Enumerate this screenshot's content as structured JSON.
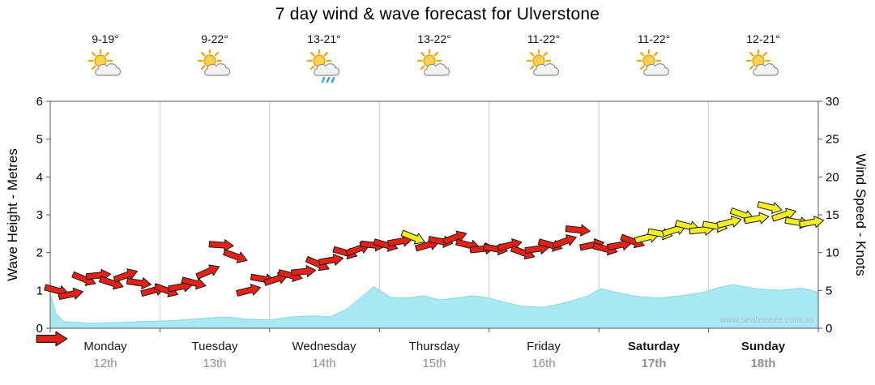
{
  "title": "7 day wind & wave forecast for Ulverstone",
  "watermark": "www.seabreeze.com.au",
  "days": [
    {
      "name": "Monday",
      "date": "12th",
      "temp": "9-19°",
      "icon": "partly-cloudy",
      "weekend": false
    },
    {
      "name": "Tuesday",
      "date": "13th",
      "temp": "9-22°",
      "icon": "partly-cloudy",
      "weekend": false
    },
    {
      "name": "Wednesday",
      "date": "14th",
      "temp": "13-21°",
      "icon": "partly-cloudy-rain",
      "weekend": false
    },
    {
      "name": "Thursday",
      "date": "15th",
      "temp": "13-22°",
      "icon": "partly-cloudy",
      "weekend": false
    },
    {
      "name": "Friday",
      "date": "16th",
      "temp": "11-22°",
      "icon": "partly-cloudy",
      "weekend": false
    },
    {
      "name": "Saturday",
      "date": "17th",
      "temp": "11-22°",
      "icon": "partly-cloudy",
      "weekend": true
    },
    {
      "name": "Sunday",
      "date": "18th",
      "temp": "12-21°",
      "icon": "partly-cloudy",
      "weekend": true
    }
  ],
  "chart_data": {
    "type": "area",
    "x_axis": {
      "unit": "days",
      "span": 7,
      "labels": [
        "Monday 12th",
        "Tuesday 13th",
        "Wednesday 14th",
        "Thursday 15th",
        "Friday 16th",
        "Saturday 17th",
        "Sunday 18th"
      ]
    },
    "grid": {
      "vertical_day_separators": true,
      "horizontal": false
    },
    "wave_height": {
      "label": "Wave Height - Metres",
      "ylim": [
        0,
        6
      ],
      "ticks": [
        0,
        1,
        2,
        3,
        4,
        5,
        6
      ],
      "color": "#a9e9f4",
      "edge_color": "#86d8e8",
      "points": [
        [
          0,
          0.92
        ],
        [
          0.05,
          0.4
        ],
        [
          0.12,
          0.18
        ],
        [
          0.35,
          0.13
        ],
        [
          0.6,
          0.15
        ],
        [
          0.85,
          0.18
        ],
        [
          1.1,
          0.2
        ],
        [
          1.35,
          0.25
        ],
        [
          1.6,
          0.3
        ],
        [
          1.8,
          0.24
        ],
        [
          2.0,
          0.22
        ],
        [
          2.2,
          0.3
        ],
        [
          2.4,
          0.33
        ],
        [
          2.55,
          0.3
        ],
        [
          2.7,
          0.5
        ],
        [
          2.85,
          0.85
        ],
        [
          2.95,
          1.1
        ],
        [
          3.1,
          0.82
        ],
        [
          3.25,
          0.8
        ],
        [
          3.4,
          0.86
        ],
        [
          3.55,
          0.75
        ],
        [
          3.7,
          0.8
        ],
        [
          3.85,
          0.86
        ],
        [
          4.0,
          0.8
        ],
        [
          4.15,
          0.68
        ],
        [
          4.3,
          0.58
        ],
        [
          4.5,
          0.55
        ],
        [
          4.7,
          0.68
        ],
        [
          4.9,
          0.85
        ],
        [
          5.02,
          1.05
        ],
        [
          5.15,
          0.95
        ],
        [
          5.35,
          0.84
        ],
        [
          5.55,
          0.8
        ],
        [
          5.75,
          0.86
        ],
        [
          5.95,
          0.95
        ],
        [
          6.1,
          1.08
        ],
        [
          6.22,
          1.15
        ],
        [
          6.45,
          1.04
        ],
        [
          6.65,
          1.0
        ],
        [
          6.85,
          1.06
        ],
        [
          7,
          0.95
        ]
      ]
    },
    "wind_speed": {
      "label": "Wind Speed - Knots",
      "ylim": [
        0,
        30
      ],
      "ticks": [
        0,
        5,
        10,
        15,
        20,
        25,
        30
      ],
      "colors": {
        "moderate_red": "#e32117",
        "fresh_yellow": "#f2ee1f"
      },
      "points": [
        [
          0.06,
          5,
          15,
          0
        ],
        [
          0.19,
          4.5,
          -12,
          0
        ],
        [
          0.31,
          6.5,
          22,
          0
        ],
        [
          0.44,
          7,
          -6,
          0
        ],
        [
          0.56,
          6,
          18,
          0
        ],
        [
          0.69,
          7,
          -20,
          0
        ],
        [
          0.81,
          6,
          8,
          0
        ],
        [
          0.94,
          5,
          -15,
          0
        ],
        [
          1.06,
          5,
          20,
          0
        ],
        [
          1.19,
          5.5,
          -10,
          0
        ],
        [
          1.31,
          6,
          14,
          0
        ],
        [
          1.44,
          7.5,
          -24,
          0
        ],
        [
          1.56,
          11,
          4,
          0
        ],
        [
          1.69,
          9.5,
          20,
          0
        ],
        [
          1.81,
          5,
          -14,
          0
        ],
        [
          1.94,
          6.5,
          10,
          0
        ],
        [
          2.06,
          6.5,
          -18,
          0
        ],
        [
          2.19,
          7,
          14,
          0
        ],
        [
          2.31,
          7.5,
          -6,
          0
        ],
        [
          2.44,
          8.5,
          24,
          0
        ],
        [
          2.56,
          9,
          -10,
          0
        ],
        [
          2.69,
          10,
          16,
          0
        ],
        [
          2.81,
          10.5,
          -20,
          0
        ],
        [
          2.94,
          11,
          6,
          0
        ],
        [
          3.06,
          11,
          16,
          0
        ],
        [
          3.19,
          11.5,
          -10,
          0
        ],
        [
          3.31,
          12,
          22,
          1
        ],
        [
          3.44,
          11,
          -16,
          0
        ],
        [
          3.56,
          11.5,
          10,
          0
        ],
        [
          3.69,
          12,
          -20,
          0
        ],
        [
          3.81,
          11,
          14,
          0
        ],
        [
          3.94,
          10.5,
          -6,
          0
        ],
        [
          4.06,
          10.5,
          10,
          0
        ],
        [
          4.19,
          11,
          -14,
          0
        ],
        [
          4.31,
          10,
          20,
          0
        ],
        [
          4.44,
          10.5,
          -8,
          0
        ],
        [
          4.56,
          11,
          16,
          0
        ],
        [
          4.69,
          11.5,
          -20,
          0
        ],
        [
          4.81,
          13,
          6,
          0
        ],
        [
          4.94,
          11,
          -12,
          0
        ],
        [
          5.06,
          10.5,
          14,
          0
        ],
        [
          5.19,
          11,
          -10,
          0
        ],
        [
          5.31,
          11.5,
          20,
          0
        ],
        [
          5.44,
          12,
          -14,
          1
        ],
        [
          5.56,
          12.5,
          10,
          1
        ],
        [
          5.69,
          13,
          -18,
          1
        ],
        [
          5.81,
          13.5,
          14,
          1
        ],
        [
          5.94,
          13,
          -6,
          1
        ],
        [
          6.06,
          13.5,
          10,
          1
        ],
        [
          6.19,
          14,
          -14,
          1
        ],
        [
          6.31,
          15,
          20,
          1
        ],
        [
          6.44,
          14.5,
          -10,
          1
        ],
        [
          6.56,
          16,
          14,
          1
        ],
        [
          6.69,
          15,
          -18,
          1
        ],
        [
          6.81,
          14,
          10,
          1
        ],
        [
          6.94,
          14,
          -10,
          1
        ]
      ]
    },
    "start_arrow": {
      "color": "#e32117",
      "position_day": 0,
      "knots": 0
    }
  }
}
